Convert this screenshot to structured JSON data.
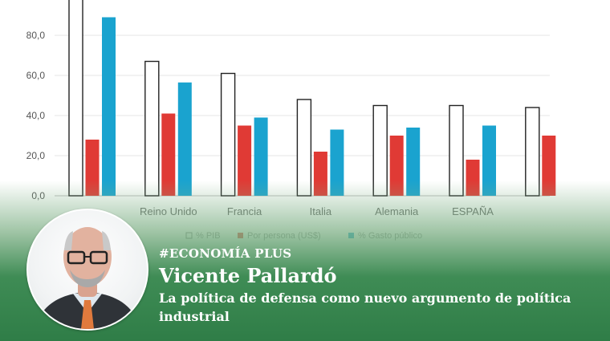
{
  "chart_data": {
    "type": "bar",
    "categories": [
      "",
      "Reino Unido",
      "Francia",
      "Italia",
      "Alemania",
      "ESPAÑA",
      ""
    ],
    "series": [
      {
        "name": "% PIB",
        "values": [
          100,
          67,
          61,
          48,
          45,
          45,
          44
        ],
        "color": "#ffffff",
        "stroke": "#222222"
      },
      {
        "name": "Por persona (US$)",
        "values": [
          28,
          41,
          35,
          22,
          30,
          18,
          30
        ],
        "color": "#e03a35"
      },
      {
        "name": "% Gasto público",
        "values": [
          89,
          56.5,
          39,
          33,
          34,
          35,
          null
        ],
        "color": "#1aa3cf"
      }
    ],
    "yticks": [
      "0,0",
      "20,0",
      "40,0",
      "60,0",
      "80,0"
    ],
    "ylim": [
      0,
      100
    ],
    "grid": true,
    "legend": [
      "% PIB",
      "Por persona (US$)",
      "% Gasto público"
    ],
    "legend_position": "bottom"
  },
  "article": {
    "tag": "#ECONOMÍA PLUS",
    "author": "Vicente Pallardó",
    "headline": "La política de defensa como nuevo argumento de política industrial"
  }
}
